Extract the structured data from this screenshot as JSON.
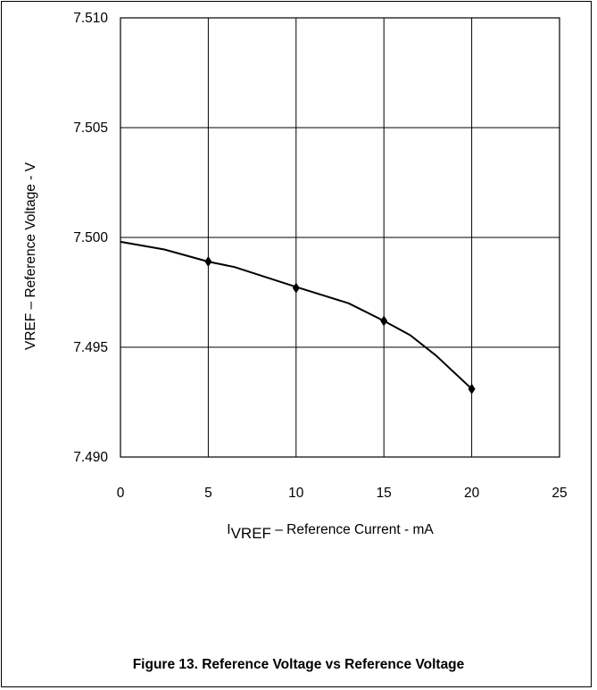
{
  "figure_caption": "Figure 13. Reference Voltage vs Reference Voltage",
  "chart_data": {
    "type": "line",
    "title": "",
    "xlabel_main": "I",
    "xlabel_sub": "VREF",
    "xlabel_rest": " – Reference Current - mA",
    "ylabel": "VREF – Reference Voltage - V",
    "xlim": [
      0,
      25
    ],
    "ylim": [
      7.49,
      7.51
    ],
    "x_ticks": [
      0,
      5,
      10,
      15,
      20,
      25
    ],
    "x_tick_labels": [
      "0",
      "5",
      "10",
      "15",
      "20",
      "25"
    ],
    "y_ticks": [
      7.49,
      7.495,
      7.5,
      7.505,
      7.51
    ],
    "y_tick_labels": [
      "7.490",
      "7.495",
      "7.500",
      "7.505",
      "7.510"
    ],
    "grid": true,
    "series": [
      {
        "name": "",
        "curve": {
          "x": [
            0,
            2.5,
            5,
            6.5,
            10,
            13,
            15,
            16.5,
            18,
            20
          ],
          "y": [
            7.4998,
            7.49945,
            7.4989,
            7.49865,
            7.49775,
            7.497,
            7.4962,
            7.49555,
            7.4946,
            7.4931
          ]
        },
        "markers": {
          "x": [
            5,
            10,
            15,
            20
          ],
          "y": [
            7.4989,
            7.4977,
            7.4962,
            7.4931
          ]
        },
        "color": "#000000"
      }
    ]
  }
}
